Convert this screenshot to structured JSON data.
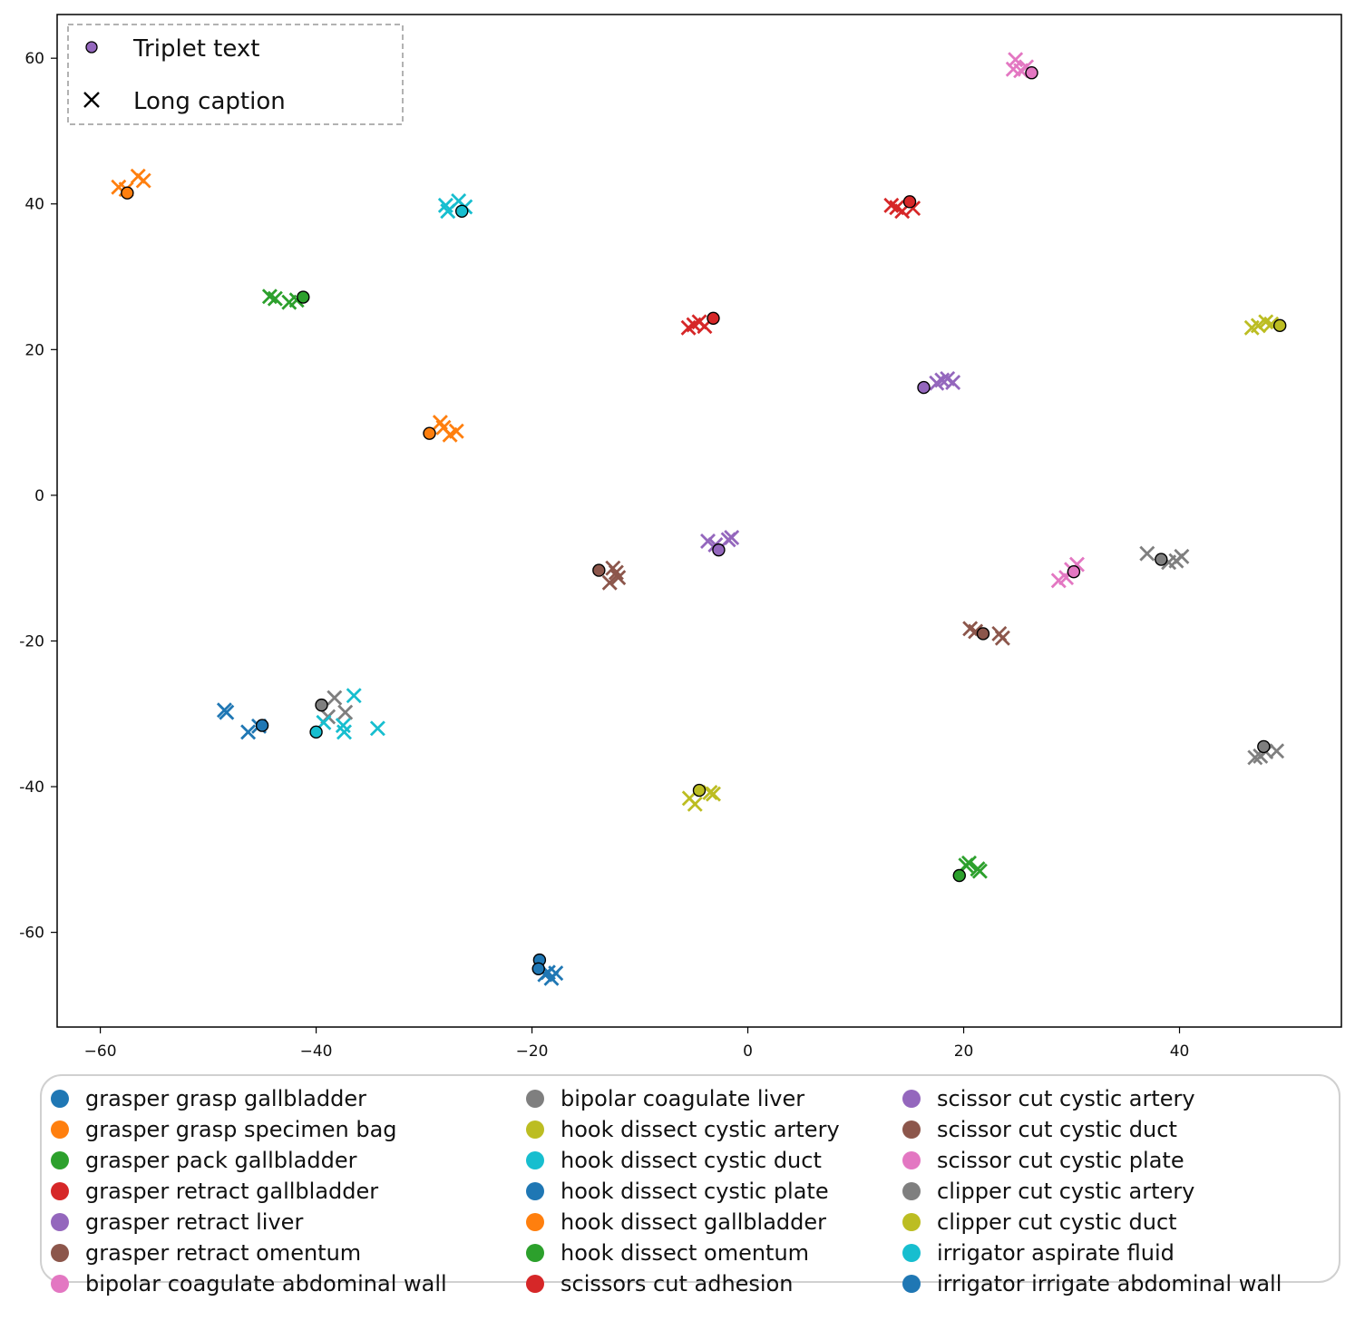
{
  "chart_data": {
    "type": "scatter",
    "title": "",
    "xlabel": "",
    "ylabel": "",
    "xlim": [
      -64,
      55
    ],
    "ylim": [
      -73,
      66
    ],
    "xticks": [
      -60,
      -40,
      -20,
      0,
      20,
      40
    ],
    "yticks": [
      60,
      40,
      20,
      0,
      -20,
      -40,
      -60
    ],
    "xtick_labels": [
      "−60",
      "−40",
      "−20",
      "0",
      "20",
      "40"
    ],
    "ytick_labels": [
      "60",
      "40",
      "20",
      "0",
      "-20",
      "-40",
      "-60"
    ],
    "grid": false,
    "marker_legend": [
      {
        "marker": "circle",
        "label": "Triplet text"
      },
      {
        "marker": "x",
        "label": "Long caption"
      }
    ],
    "classes": [
      {
        "name": "grasper grasp gallbladder",
        "color": "#1f77b4"
      },
      {
        "name": "grasper grasp specimen bag",
        "color": "#ff7f0e"
      },
      {
        "name": "grasper pack gallbladder",
        "color": "#2ca02c"
      },
      {
        "name": "grasper retract gallbladder",
        "color": "#d62728"
      },
      {
        "name": "grasper retract liver",
        "color": "#9467bd"
      },
      {
        "name": "grasper retract omentum",
        "color": "#8c564b"
      },
      {
        "name": "bipolar coagulate abdominal wall",
        "color": "#e377c2"
      },
      {
        "name": "bipolar coagulate liver",
        "color": "#7f7f7f"
      },
      {
        "name": "hook dissect cystic artery",
        "color": "#bcbd22"
      },
      {
        "name": "hook dissect cystic duct",
        "color": "#17becf"
      },
      {
        "name": "hook dissect cystic plate",
        "color": "#1f77b4"
      },
      {
        "name": "hook dissect gallbladder",
        "color": "#ff7f0e"
      },
      {
        "name": "hook dissect omentum",
        "color": "#2ca02c"
      },
      {
        "name": "scissors cut adhesion",
        "color": "#d62728"
      },
      {
        "name": "scissor cut  cystic artery",
        "color": "#9467bd"
      },
      {
        "name": "scissor cut  cystic duct",
        "color": "#8c564b"
      },
      {
        "name": "scissor cut cystic plate",
        "color": "#e377c2"
      },
      {
        "name": "clipper cut cystic artery",
        "color": "#7f7f7f"
      },
      {
        "name": "clipper cut cystic duct",
        "color": "#bcbd22"
      },
      {
        "name": "irrigator aspirate fluid",
        "color": "#17becf"
      },
      {
        "name": "irrigator irrigate abdominal wall",
        "color": "#1f77b4"
      }
    ],
    "triplet_points": [
      {
        "x": -57.5,
        "y": 41.5,
        "color": "#ff7f0e"
      },
      {
        "x": -26.5,
        "y": 39.0,
        "color": "#17becf"
      },
      {
        "x": -41.2,
        "y": 27.2,
        "color": "#2ca02c"
      },
      {
        "x": -29.5,
        "y": 8.5,
        "color": "#ff7f0e"
      },
      {
        "x": 15.0,
        "y": 40.3,
        "color": "#d62728"
      },
      {
        "x": -3.2,
        "y": 24.3,
        "color": "#d62728"
      },
      {
        "x": 26.3,
        "y": 58.0,
        "color": "#e377c2"
      },
      {
        "x": 16.3,
        "y": 14.8,
        "color": "#9467bd"
      },
      {
        "x": 49.3,
        "y": 23.3,
        "color": "#bcbd22"
      },
      {
        "x": -2.7,
        "y": -7.5,
        "color": "#9467bd"
      },
      {
        "x": -13.8,
        "y": -10.3,
        "color": "#8c564b"
      },
      {
        "x": 30.2,
        "y": -10.5,
        "color": "#e377c2"
      },
      {
        "x": 38.3,
        "y": -8.8,
        "color": "#7f7f7f"
      },
      {
        "x": 21.8,
        "y": -19.0,
        "color": "#8c564b"
      },
      {
        "x": -45.0,
        "y": -31.6,
        "color": "#1f77b4"
      },
      {
        "x": -39.5,
        "y": -28.8,
        "color": "#7f7f7f"
      },
      {
        "x": -40.0,
        "y": -32.5,
        "color": "#17becf"
      },
      {
        "x": -4.5,
        "y": -40.5,
        "color": "#bcbd22"
      },
      {
        "x": 47.8,
        "y": -34.5,
        "color": "#7f7f7f"
      },
      {
        "x": 19.6,
        "y": -52.2,
        "color": "#2ca02c"
      },
      {
        "x": -19.3,
        "y": -63.8,
        "color": "#1f77b4"
      },
      {
        "x": -19.4,
        "y": -65.0,
        "color": "#1f77b4"
      }
    ],
    "caption_points": [
      {
        "x": -58.3,
        "y": 42.3,
        "color": "#ff7f0e"
      },
      {
        "x": -57.6,
        "y": 42.0,
        "color": "#ff7f0e"
      },
      {
        "x": -56.5,
        "y": 43.8,
        "color": "#ff7f0e"
      },
      {
        "x": -56.0,
        "y": 43.2,
        "color": "#ff7f0e"
      },
      {
        "x": -28.0,
        "y": 39.8,
        "color": "#17becf"
      },
      {
        "x": -27.8,
        "y": 39.0,
        "color": "#17becf"
      },
      {
        "x": -26.8,
        "y": 40.4,
        "color": "#17becf"
      },
      {
        "x": -26.2,
        "y": 39.6,
        "color": "#17becf"
      },
      {
        "x": -44.3,
        "y": 27.3,
        "color": "#2ca02c"
      },
      {
        "x": -43.8,
        "y": 27.0,
        "color": "#2ca02c"
      },
      {
        "x": -42.5,
        "y": 26.5,
        "color": "#2ca02c"
      },
      {
        "x": -41.8,
        "y": 26.8,
        "color": "#2ca02c"
      },
      {
        "x": -28.5,
        "y": 10.0,
        "color": "#ff7f0e"
      },
      {
        "x": -28.2,
        "y": 9.3,
        "color": "#ff7f0e"
      },
      {
        "x": -27.6,
        "y": 8.3,
        "color": "#ff7f0e"
      },
      {
        "x": -27.0,
        "y": 8.8,
        "color": "#ff7f0e"
      },
      {
        "x": 13.3,
        "y": 39.8,
        "color": "#d62728"
      },
      {
        "x": 13.8,
        "y": 39.5,
        "color": "#d62728"
      },
      {
        "x": 14.3,
        "y": 39.0,
        "color": "#d62728"
      },
      {
        "x": 15.3,
        "y": 39.4,
        "color": "#d62728"
      },
      {
        "x": -5.5,
        "y": 23.0,
        "color": "#d62728"
      },
      {
        "x": -5.0,
        "y": 23.4,
        "color": "#d62728"
      },
      {
        "x": -4.5,
        "y": 23.8,
        "color": "#d62728"
      },
      {
        "x": -4.0,
        "y": 23.2,
        "color": "#d62728"
      },
      {
        "x": 24.6,
        "y": 58.5,
        "color": "#e377c2"
      },
      {
        "x": 24.8,
        "y": 59.8,
        "color": "#e377c2"
      },
      {
        "x": 25.3,
        "y": 58.3,
        "color": "#e377c2"
      },
      {
        "x": 25.8,
        "y": 58.8,
        "color": "#e377c2"
      },
      {
        "x": 17.5,
        "y": 15.4,
        "color": "#9467bd"
      },
      {
        "x": 18.0,
        "y": 15.8,
        "color": "#9467bd"
      },
      {
        "x": 18.5,
        "y": 16.0,
        "color": "#9467bd"
      },
      {
        "x": 19.0,
        "y": 15.5,
        "color": "#9467bd"
      },
      {
        "x": 46.7,
        "y": 23.0,
        "color": "#bcbd22"
      },
      {
        "x": 47.3,
        "y": 23.3,
        "color": "#bcbd22"
      },
      {
        "x": 48.0,
        "y": 23.8,
        "color": "#bcbd22"
      },
      {
        "x": 48.5,
        "y": 23.5,
        "color": "#bcbd22"
      },
      {
        "x": -3.7,
        "y": -6.3,
        "color": "#9467bd"
      },
      {
        "x": -3.0,
        "y": -6.8,
        "color": "#9467bd"
      },
      {
        "x": -1.5,
        "y": -5.8,
        "color": "#9467bd"
      },
      {
        "x": -1.8,
        "y": -6.1,
        "color": "#9467bd"
      },
      {
        "x": -12.5,
        "y": -10.0,
        "color": "#8c564b"
      },
      {
        "x": -12.2,
        "y": -10.6,
        "color": "#8c564b"
      },
      {
        "x": -12.8,
        "y": -12.0,
        "color": "#8c564b"
      },
      {
        "x": -12.0,
        "y": -11.3,
        "color": "#8c564b"
      },
      {
        "x": 28.8,
        "y": -11.7,
        "color": "#e377c2"
      },
      {
        "x": 29.5,
        "y": -11.3,
        "color": "#e377c2"
      },
      {
        "x": 30.0,
        "y": -10.2,
        "color": "#e377c2"
      },
      {
        "x": 30.5,
        "y": -9.5,
        "color": "#e377c2"
      },
      {
        "x": 37.0,
        "y": -8.0,
        "color": "#7f7f7f"
      },
      {
        "x": 39.0,
        "y": -9.2,
        "color": "#7f7f7f"
      },
      {
        "x": 39.7,
        "y": -9.0,
        "color": "#7f7f7f"
      },
      {
        "x": 40.2,
        "y": -8.4,
        "color": "#7f7f7f"
      },
      {
        "x": 20.6,
        "y": -18.3,
        "color": "#8c564b"
      },
      {
        "x": 21.1,
        "y": -18.7,
        "color": "#8c564b"
      },
      {
        "x": 23.3,
        "y": -19.0,
        "color": "#8c564b"
      },
      {
        "x": 23.6,
        "y": -19.6,
        "color": "#8c564b"
      },
      {
        "x": -48.3,
        "y": -29.8,
        "color": "#1f77b4"
      },
      {
        "x": -48.5,
        "y": -29.5,
        "color": "#1f77b4"
      },
      {
        "x": -46.3,
        "y": -32.5,
        "color": "#1f77b4"
      },
      {
        "x": -45.3,
        "y": -31.7,
        "color": "#1f77b4"
      },
      {
        "x": -38.3,
        "y": -27.8,
        "color": "#7f7f7f"
      },
      {
        "x": -38.9,
        "y": -30.4,
        "color": "#7f7f7f"
      },
      {
        "x": -37.3,
        "y": -29.8,
        "color": "#7f7f7f"
      },
      {
        "x": -39.3,
        "y": -31.2,
        "color": "#17becf"
      },
      {
        "x": -37.5,
        "y": -31.6,
        "color": "#17becf"
      },
      {
        "x": -37.4,
        "y": -32.5,
        "color": "#17becf"
      },
      {
        "x": -36.5,
        "y": -27.5,
        "color": "#17becf"
      },
      {
        "x": -34.3,
        "y": -32.0,
        "color": "#17becf"
      },
      {
        "x": -5.4,
        "y": -41.6,
        "color": "#bcbd22"
      },
      {
        "x": -4.9,
        "y": -42.4,
        "color": "#bcbd22"
      },
      {
        "x": -3.5,
        "y": -40.8,
        "color": "#bcbd22"
      },
      {
        "x": -3.2,
        "y": -41.0,
        "color": "#bcbd22"
      },
      {
        "x": 47.0,
        "y": -36.0,
        "color": "#7f7f7f"
      },
      {
        "x": 47.5,
        "y": -35.8,
        "color": "#7f7f7f"
      },
      {
        "x": 48.0,
        "y": -35.2,
        "color": "#7f7f7f"
      },
      {
        "x": 49.0,
        "y": -35.1,
        "color": "#7f7f7f"
      },
      {
        "x": 20.2,
        "y": -50.8,
        "color": "#2ca02c"
      },
      {
        "x": 20.5,
        "y": -50.5,
        "color": "#2ca02c"
      },
      {
        "x": 21.3,
        "y": -51.3,
        "color": "#2ca02c"
      },
      {
        "x": 21.5,
        "y": -51.6,
        "color": "#2ca02c"
      },
      {
        "x": -18.8,
        "y": -65.8,
        "color": "#1f77b4"
      },
      {
        "x": -18.2,
        "y": -66.3,
        "color": "#1f77b4"
      },
      {
        "x": -17.8,
        "y": -65.6,
        "color": "#1f77b4"
      },
      {
        "x": -18.5,
        "y": -65.5,
        "color": "#1f77b4"
      }
    ]
  }
}
